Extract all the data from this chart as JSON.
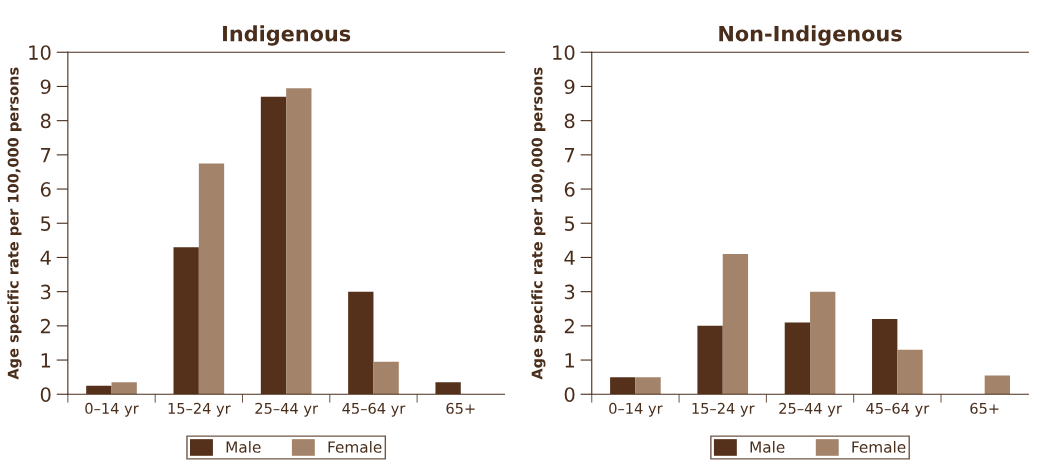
{
  "chart_data": [
    {
      "type": "bar",
      "title": "Indigenous",
      "ylabel": "Age specific rate per 100,000 persons",
      "categories": [
        "0–14 yr",
        "15–24 yr",
        "25–44 yr",
        "45–64 yr",
        "65+"
      ],
      "series": [
        {
          "name": "Male",
          "color": "#55301a",
          "values": [
            0.25,
            4.3,
            8.7,
            3.0,
            0.35
          ]
        },
        {
          "name": "Female",
          "color": "#a3846b",
          "values": [
            0.35,
            6.75,
            8.95,
            0.95,
            0
          ]
        }
      ],
      "ylim": [
        0,
        10
      ],
      "yticks": [
        0,
        1,
        2,
        3,
        4,
        5,
        6,
        7,
        8,
        9,
        10
      ],
      "grid": false,
      "legend": "bottom"
    },
    {
      "type": "bar",
      "title": "Non-Indigenous",
      "ylabel": "Age specific rate per 100,000 persons",
      "categories": [
        "0–14 yr",
        "15–24 yr",
        "25–44 yr",
        "45–64 yr",
        "65+"
      ],
      "series": [
        {
          "name": "Male",
          "color": "#55301a",
          "values": [
            0.5,
            2.0,
            2.1,
            2.2,
            0
          ]
        },
        {
          "name": "Female",
          "color": "#a3846b",
          "values": [
            0.5,
            4.1,
            3.0,
            1.3,
            0.55
          ]
        }
      ],
      "ylim": [
        0,
        10
      ],
      "yticks": [
        0,
        1,
        2,
        3,
        4,
        5,
        6,
        7,
        8,
        9,
        10
      ],
      "grid": false,
      "legend": "bottom"
    }
  ]
}
